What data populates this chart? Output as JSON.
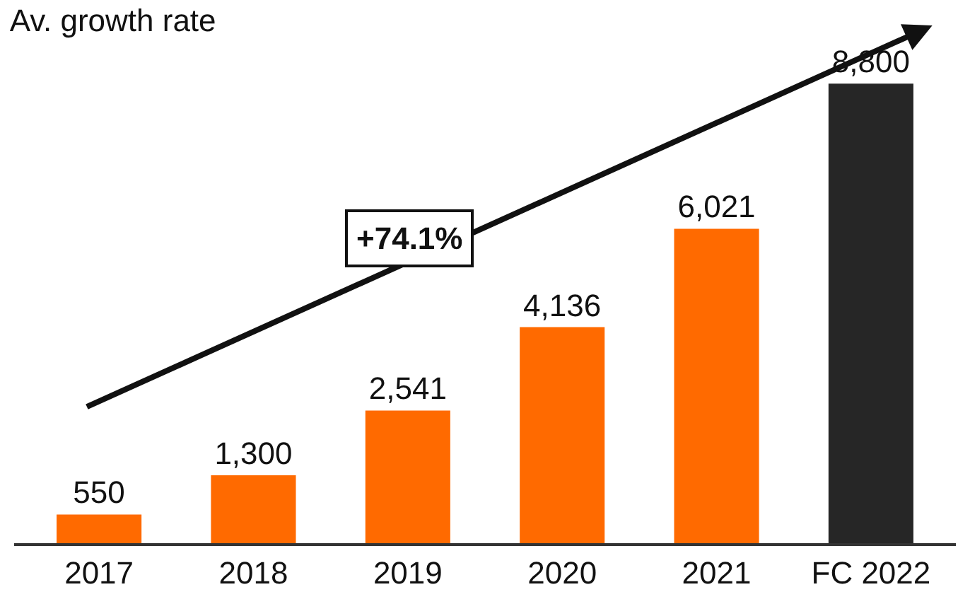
{
  "chart_data": {
    "type": "bar",
    "title": "Av. growth rate",
    "categories": [
      "2017",
      "2018",
      "2019",
      "2020",
      "2021",
      "FC 2022"
    ],
    "values": [
      550,
      1300,
      2541,
      4136,
      6021,
      8800
    ],
    "colors": [
      "#ff6a00",
      "#ff6a00",
      "#ff6a00",
      "#ff6a00",
      "#ff6a00",
      "#262626"
    ],
    "value_labels": [
      "550",
      "1,300",
      "2,541",
      "4,136",
      "6,021",
      "8,800"
    ],
    "tick_labels": "x",
    "annotations": [
      "+74.1%"
    ]
  }
}
